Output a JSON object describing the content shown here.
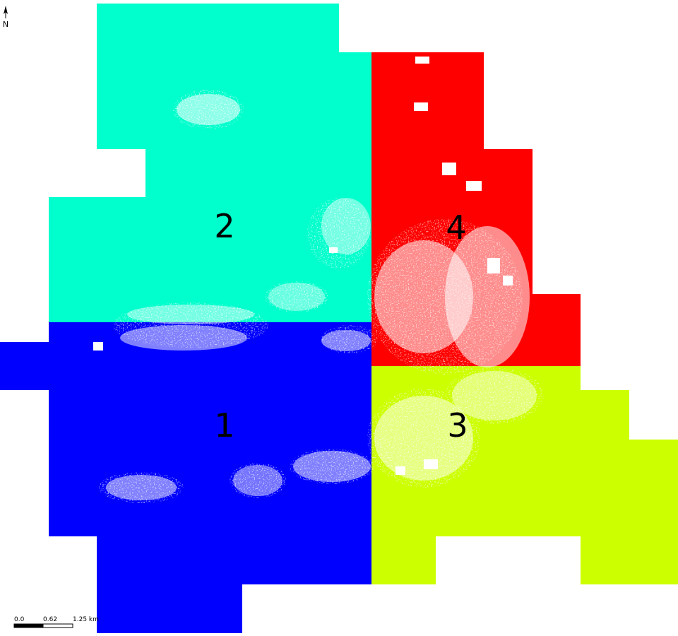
{
  "north_arrow": {
    "letter": "N",
    "icon": "north-arrow-icon"
  },
  "zones": [
    {
      "label": "1",
      "color": "#0000ff"
    },
    {
      "label": "2",
      "color": "#00ffcc"
    },
    {
      "label": "3",
      "color": "#ccff00"
    },
    {
      "label": "4",
      "color": "#ff0000"
    }
  ],
  "scale_bar": {
    "labels": [
      "0.0",
      "0.62",
      "1.25 km"
    ]
  },
  "urban_color": "#ffffff"
}
